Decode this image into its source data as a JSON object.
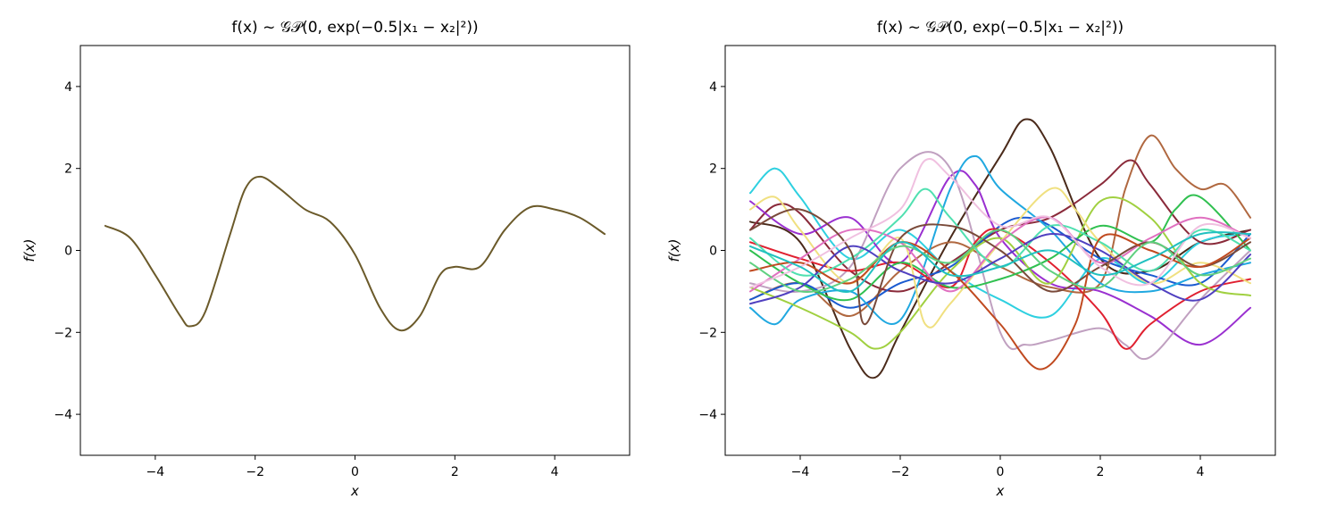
{
  "chart_data": [
    {
      "type": "line",
      "title": "f(x) ~ 𝒢𝒫(0, exp(−0.5|x₁ − x₂|²))",
      "xlabel": "x",
      "ylabel": "f(x)",
      "xlim": [
        -5.5,
        5.5
      ],
      "ylim": [
        -5,
        5
      ],
      "xticks": [
        -4,
        -2,
        0,
        2,
        4
      ],
      "yticks": [
        -4,
        -2,
        0,
        2,
        4
      ],
      "xtick_labels": [
        "−4",
        "−2",
        "0",
        "2",
        "4"
      ],
      "ytick_labels": [
        "−4",
        "−2",
        "0",
        "2",
        "4"
      ],
      "grid": false,
      "series": [
        {
          "color": "#6b5a2a",
          "x": [
            -5,
            -4.5,
            -4,
            -3.5,
            -3.3,
            -3,
            -2.5,
            -2.2,
            -1.9,
            -1.5,
            -1,
            -0.5,
            0,
            0.5,
            0.9,
            1.3,
            1.7,
            2,
            2.5,
            3,
            3.5,
            4,
            4.5,
            5
          ],
          "y": [
            0.6,
            0.3,
            -0.6,
            -1.6,
            -1.85,
            -1.5,
            0.4,
            1.5,
            1.8,
            1.5,
            1.0,
            0.7,
            -0.1,
            -1.4,
            -1.95,
            -1.6,
            -0.6,
            -0.4,
            -0.4,
            0.5,
            1.05,
            1.0,
            0.8,
            0.4
          ]
        }
      ]
    },
    {
      "type": "line",
      "title": "f(x) ~ 𝒢𝒫(0, exp(−0.5|x₁ − x₂|²))",
      "xlabel": "x",
      "ylabel": "f(x)",
      "xlim": [
        -5.5,
        5.5
      ],
      "ylim": [
        -5,
        5
      ],
      "xticks": [
        -4,
        -2,
        0,
        2,
        4
      ],
      "yticks": [
        -4,
        -2,
        0,
        2,
        4
      ],
      "xtick_labels": [
        "−4",
        "−2",
        "0",
        "2",
        "4"
      ],
      "ytick_labels": [
        "−4",
        "−2",
        "0",
        "2",
        "4"
      ],
      "grid": false,
      "series": [
        {
          "color": "#4a2a1a",
          "x": [
            -5,
            -4,
            -3,
            -2.5,
            -2,
            -1,
            0,
            0.5,
            1,
            2,
            3,
            4,
            5
          ],
          "y": [
            0.7,
            0.2,
            -2.4,
            -3.1,
            -2.0,
            0.3,
            2.3,
            3.2,
            2.5,
            -0.2,
            -0.5,
            0.2,
            0.5
          ]
        },
        {
          "color": "#2ed0e0",
          "x": [
            -5,
            -4.5,
            -4,
            -3,
            -2,
            -1,
            0,
            1,
            2,
            3,
            4,
            5
          ],
          "y": [
            1.4,
            2.0,
            1.3,
            -0.2,
            0.5,
            -0.5,
            -1.2,
            -1.6,
            -0.2,
            -0.8,
            0.2,
            0.4
          ]
        },
        {
          "color": "#b06840",
          "x": [
            -5,
            -4,
            -3,
            -2,
            -1,
            0,
            1,
            2,
            2.5,
            3,
            3.5,
            4,
            4.5,
            5
          ],
          "y": [
            -1.2,
            -0.8,
            -1.6,
            -0.5,
            0.2,
            -0.4,
            -0.9,
            -0.8,
            1.5,
            2.8,
            2.0,
            1.5,
            1.6,
            0.8
          ]
        },
        {
          "color": "#8a2a3a",
          "x": [
            -5,
            -4.5,
            -4,
            -3,
            -2,
            -1,
            0,
            1,
            2,
            2.6,
            3,
            4,
            5
          ],
          "y": [
            0.5,
            1.1,
            0.9,
            -0.5,
            -1.0,
            -0.3,
            0.5,
            0.8,
            1.6,
            2.2,
            1.6,
            0.2,
            0.5
          ]
        },
        {
          "color": "#9a30d0",
          "x": [
            -5,
            -4,
            -3,
            -2,
            -1,
            -0.5,
            0,
            1,
            2,
            3,
            4,
            5
          ],
          "y": [
            1.2,
            0.4,
            0.8,
            -0.3,
            1.8,
            1.6,
            0.3,
            -0.8,
            -1.0,
            -1.6,
            -2.3,
            -1.4
          ]
        },
        {
          "color": "#c0a0c0",
          "x": [
            -5,
            -4,
            -3,
            -2,
            -1,
            0,
            0.5,
            1,
            2,
            2.5,
            3,
            4,
            5
          ],
          "y": [
            -0.8,
            -1.0,
            -0.4,
            2.0,
            2.0,
            -2.0,
            -2.3,
            -2.2,
            -1.9,
            -2.3,
            -2.6,
            -1.2,
            0.0
          ]
        },
        {
          "color": "#1a5ad0",
          "x": [
            -5,
            -4,
            -3,
            -2,
            -1,
            0,
            0.5,
            1,
            2,
            3,
            4,
            5
          ],
          "y": [
            -1.2,
            -0.8,
            -1.4,
            -0.8,
            -0.4,
            0.6,
            0.8,
            0.6,
            -0.2,
            -0.6,
            -0.8,
            0.4
          ]
        },
        {
          "color": "#20a8e0",
          "x": [
            -5,
            -4.5,
            -4,
            -3,
            -2,
            -1,
            -0.5,
            0,
            1,
            2,
            3,
            4,
            5
          ],
          "y": [
            -1.4,
            -1.8,
            -1.2,
            -1.0,
            -1.7,
            1.5,
            2.3,
            1.5,
            0.5,
            -0.8,
            -1.0,
            -0.6,
            -0.3
          ]
        },
        {
          "color": "#e02030",
          "x": [
            -5,
            -4,
            -3,
            -2,
            -1,
            -0.5,
            0,
            1,
            2,
            2.5,
            3,
            4,
            5
          ],
          "y": [
            0.2,
            -0.2,
            -0.5,
            -0.3,
            -0.9,
            0.2,
            0.5,
            -0.3,
            -1.5,
            -2.4,
            -1.8,
            -1.0,
            -0.7
          ]
        },
        {
          "color": "#a0d040",
          "x": [
            -5,
            -4,
            -3,
            -2.5,
            -2,
            -1,
            0,
            1,
            2,
            3,
            4,
            5
          ],
          "y": [
            -0.9,
            -1.4,
            -2.0,
            -2.4,
            -2.0,
            -0.5,
            0.3,
            -0.8,
            1.2,
            0.8,
            -0.8,
            -1.1
          ]
        },
        {
          "color": "#30c050",
          "x": [
            -5,
            -4,
            -3,
            -2,
            -1,
            0,
            1,
            2,
            3,
            3.5,
            4,
            5
          ],
          "y": [
            0.0,
            -0.8,
            -1.2,
            -0.3,
            -0.9,
            -0.7,
            -0.2,
            0.6,
            0.2,
            1.0,
            1.3,
            0.0
          ]
        },
        {
          "color": "#f0e080",
          "x": [
            -5,
            -4.5,
            -4,
            -3,
            -2,
            -1.5,
            -1,
            0,
            1,
            1.5,
            2,
            3,
            4,
            5
          ],
          "y": [
            1.0,
            1.3,
            0.5,
            -0.8,
            0.3,
            -1.8,
            -1.3,
            0.2,
            1.5,
            1.0,
            0.2,
            -0.8,
            -0.3,
            -0.8
          ]
        },
        {
          "color": "#e070c0",
          "x": [
            -5,
            -4,
            -3,
            -2,
            -1,
            0,
            1,
            2,
            3,
            4,
            5
          ],
          "y": [
            -1.0,
            -0.2,
            0.5,
            0.2,
            -1.0,
            0.2,
            0.8,
            -0.3,
            0.3,
            0.8,
            0.3
          ]
        },
        {
          "color": "#50e0b0",
          "x": [
            -5,
            -4,
            -3,
            -2,
            -1.5,
            -1,
            0,
            1,
            2,
            3,
            4,
            5
          ],
          "y": [
            0.3,
            -0.6,
            -0.2,
            0.8,
            1.5,
            0.8,
            -0.4,
            0.6,
            0.2,
            -0.5,
            0.5,
            0.0
          ]
        },
        {
          "color": "#5040c0",
          "x": [
            -5,
            -4,
            -3,
            -2,
            -1,
            0,
            1,
            2,
            3,
            4,
            5
          ],
          "y": [
            -1.3,
            -0.9,
            0.1,
            -0.5,
            -0.8,
            -0.2,
            0.4,
            0.0,
            -0.8,
            -1.2,
            -0.1
          ]
        },
        {
          "color": "#7a4a3a",
          "x": [
            -5,
            -4,
            -3,
            -2.7,
            -2,
            -1,
            0,
            1,
            2,
            3,
            4,
            5
          ],
          "y": [
            0.5,
            1.0,
            0.0,
            -1.8,
            0.3,
            0.6,
            0.0,
            -1.0,
            -0.4,
            0.2,
            -0.4,
            0.2
          ]
        },
        {
          "color": "#c04a20",
          "x": [
            -5,
            -4,
            -3,
            -2,
            -1,
            0,
            0.8,
            1.5,
            2,
            3,
            4,
            5
          ],
          "y": [
            -0.5,
            -0.3,
            -0.8,
            0.2,
            -0.5,
            -1.8,
            -2.9,
            -1.8,
            0.3,
            0.0,
            -0.4,
            0.3
          ]
        },
        {
          "color": "#60d080",
          "x": [
            -5,
            -4,
            -3,
            -2,
            -1,
            0,
            1,
            2,
            3,
            4,
            5
          ],
          "y": [
            -0.3,
            -1.0,
            -0.7,
            0.1,
            -0.3,
            0.5,
            -0.5,
            -0.9,
            0.2,
            -0.6,
            -0.2
          ]
        },
        {
          "color": "#f0c0e0",
          "x": [
            -5,
            -4,
            -3,
            -2,
            -1.5,
            -1,
            0,
            1,
            2,
            3,
            4,
            5
          ],
          "y": [
            -0.9,
            -0.4,
            0.3,
            1.0,
            2.2,
            1.8,
            0.6,
            0.8,
            -0.4,
            -0.8,
            0.6,
            0.3
          ]
        },
        {
          "color": "#20c0c0",
          "x": [
            -5,
            -4,
            -3,
            -2,
            -1,
            0,
            1,
            2,
            3,
            4,
            5
          ],
          "y": [
            0.1,
            -0.4,
            -1.0,
            0.2,
            -0.6,
            -0.4,
            0.0,
            -0.6,
            -0.2,
            0.4,
            0.4
          ]
        }
      ]
    }
  ]
}
